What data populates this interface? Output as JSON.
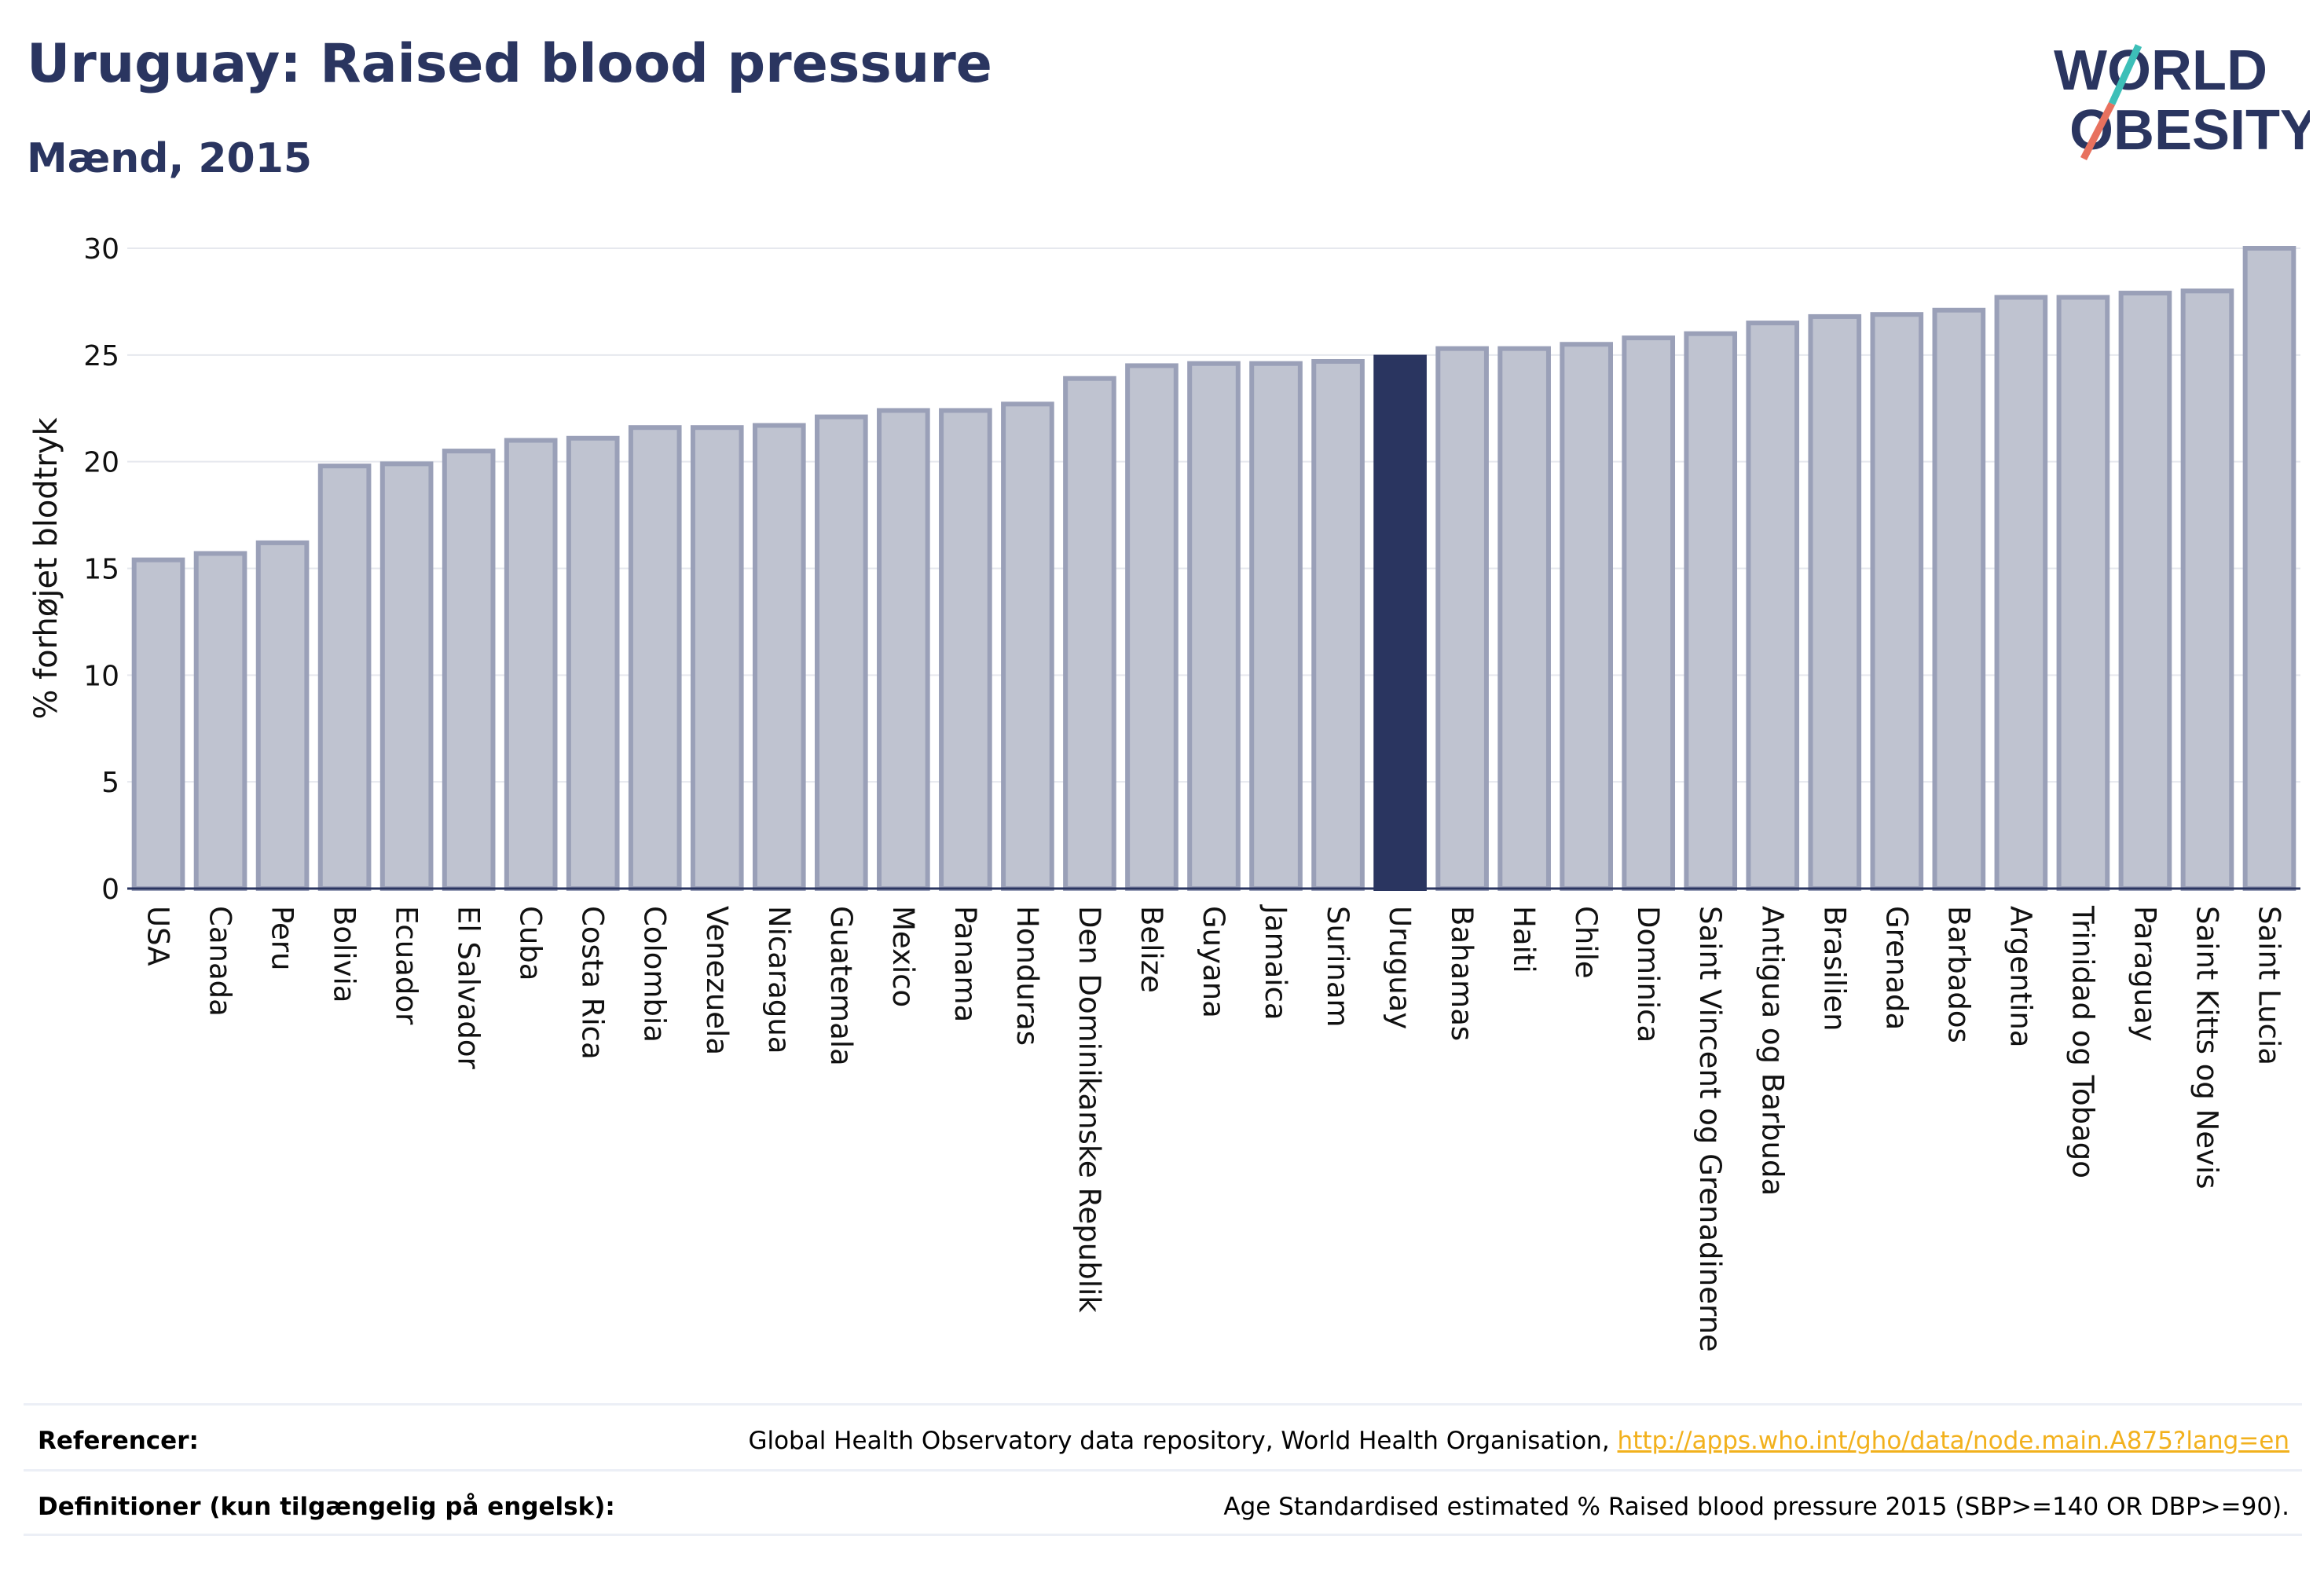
{
  "header": {
    "title": "Uruguay: Raised blood pressure",
    "subtitle": "Mænd, 2015",
    "logo_line1": "WORLD",
    "logo_line2": "OBESITY"
  },
  "colors": {
    "title": "#2a3560",
    "bar_fill": "#bfc3d0",
    "bar_stroke": "#9aa0b8",
    "highlight": "#2a3560",
    "logo_teal": "#3dbfb8",
    "logo_coral": "#e8715e",
    "link": "#f2b11d"
  },
  "chart_data": {
    "type": "bar",
    "ylabel": "% forhøjet blodtryk",
    "ylim": [
      0,
      30
    ],
    "yticks": [
      0,
      5,
      10,
      15,
      20,
      25,
      30
    ],
    "grid": true,
    "highlight": "Uruguay",
    "categories": [
      "USA",
      "Canada",
      "Peru",
      "Bolivia",
      "Ecuador",
      "El Salvador",
      "Cuba",
      "Costa Rica",
      "Colombia",
      "Venezuela",
      "Nicaragua",
      "Guatemala",
      "Mexico",
      "Panama",
      "Honduras",
      "Den Dominikanske Republik",
      "Belize",
      "Guyana",
      "Jamaica",
      "Surinam",
      "Uruguay",
      "Bahamas",
      "Haiti",
      "Chile",
      "Dominica",
      "Saint Vincent og Grenadinerne",
      "Antigua og Barbuda",
      "Brasilien",
      "Grenada",
      "Barbados",
      "Argentina",
      "Trinidad og Tobago",
      "Paraguay",
      "Saint Kitts og Nevis",
      "Saint Lucia"
    ],
    "values": [
      15.4,
      15.7,
      16.2,
      19.8,
      19.9,
      20.5,
      21.0,
      21.1,
      21.6,
      21.6,
      21.7,
      22.1,
      22.4,
      22.4,
      22.7,
      23.9,
      24.5,
      24.6,
      24.6,
      24.7,
      24.9,
      25.3,
      25.3,
      25.5,
      25.8,
      26.0,
      26.5,
      26.8,
      26.9,
      27.1,
      27.7,
      27.7,
      27.9,
      28.0,
      30.0
    ]
  },
  "footer": {
    "references_label": "Referencer:",
    "references_text": "Global Health Observatory data repository, World Health Organisation, ",
    "references_link": "http://apps.who.int/gho/data/node.main.A875?lang=en",
    "definitions_label": "Definitioner (kun tilgængelig på engelsk):",
    "definitions_text": "Age Standardised estimated % Raised blood pressure 2015 (SBP>=140 OR DBP>=90)."
  }
}
